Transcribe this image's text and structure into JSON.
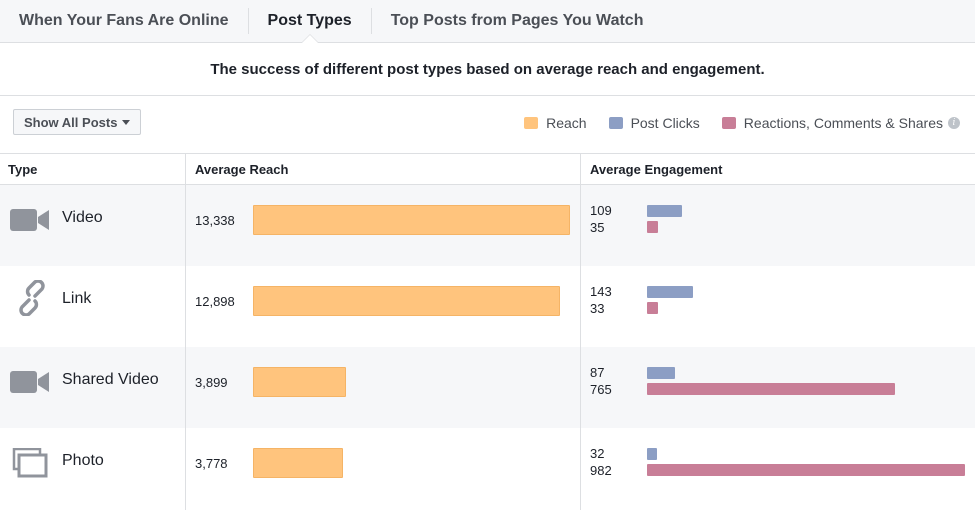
{
  "tabs": [
    {
      "label": "When Your Fans Are Online",
      "active": false
    },
    {
      "label": "Post Types",
      "active": true
    },
    {
      "label": "Top Posts from Pages You Watch",
      "active": false
    }
  ],
  "subtitle": "The success of different post types based on average reach and engagement.",
  "filter": {
    "label": "Show All Posts"
  },
  "legend": [
    {
      "label": "Reach",
      "color": "#ffc47d"
    },
    {
      "label": "Post Clicks",
      "color": "#8c9ec4"
    },
    {
      "label": "Reactions, Comments & Shares",
      "color": "#c87e97"
    }
  ],
  "table": {
    "headers": {
      "type": "Type",
      "reach": "Average Reach",
      "engagement": "Average Engagement"
    }
  },
  "chart_data": {
    "type": "bar",
    "categories": [
      "Video",
      "Link",
      "Shared Video",
      "Photo"
    ],
    "icons": [
      "video-camera-icon",
      "link-icon",
      "video-camera-icon",
      "photo-stack-icon"
    ],
    "reach": {
      "values": [
        13338,
        12898,
        3899,
        3778
      ],
      "labels": [
        "13,338",
        "12,898",
        "3,899",
        "3,778"
      ]
    },
    "post_clicks": {
      "values": [
        109,
        143,
        87,
        32
      ],
      "labels": [
        "109",
        "143",
        "87",
        "32"
      ]
    },
    "reactions": {
      "values": [
        35,
        33,
        765,
        982
      ],
      "labels": [
        "35",
        "33",
        "765",
        "982"
      ]
    },
    "legend_position": "top-right"
  }
}
